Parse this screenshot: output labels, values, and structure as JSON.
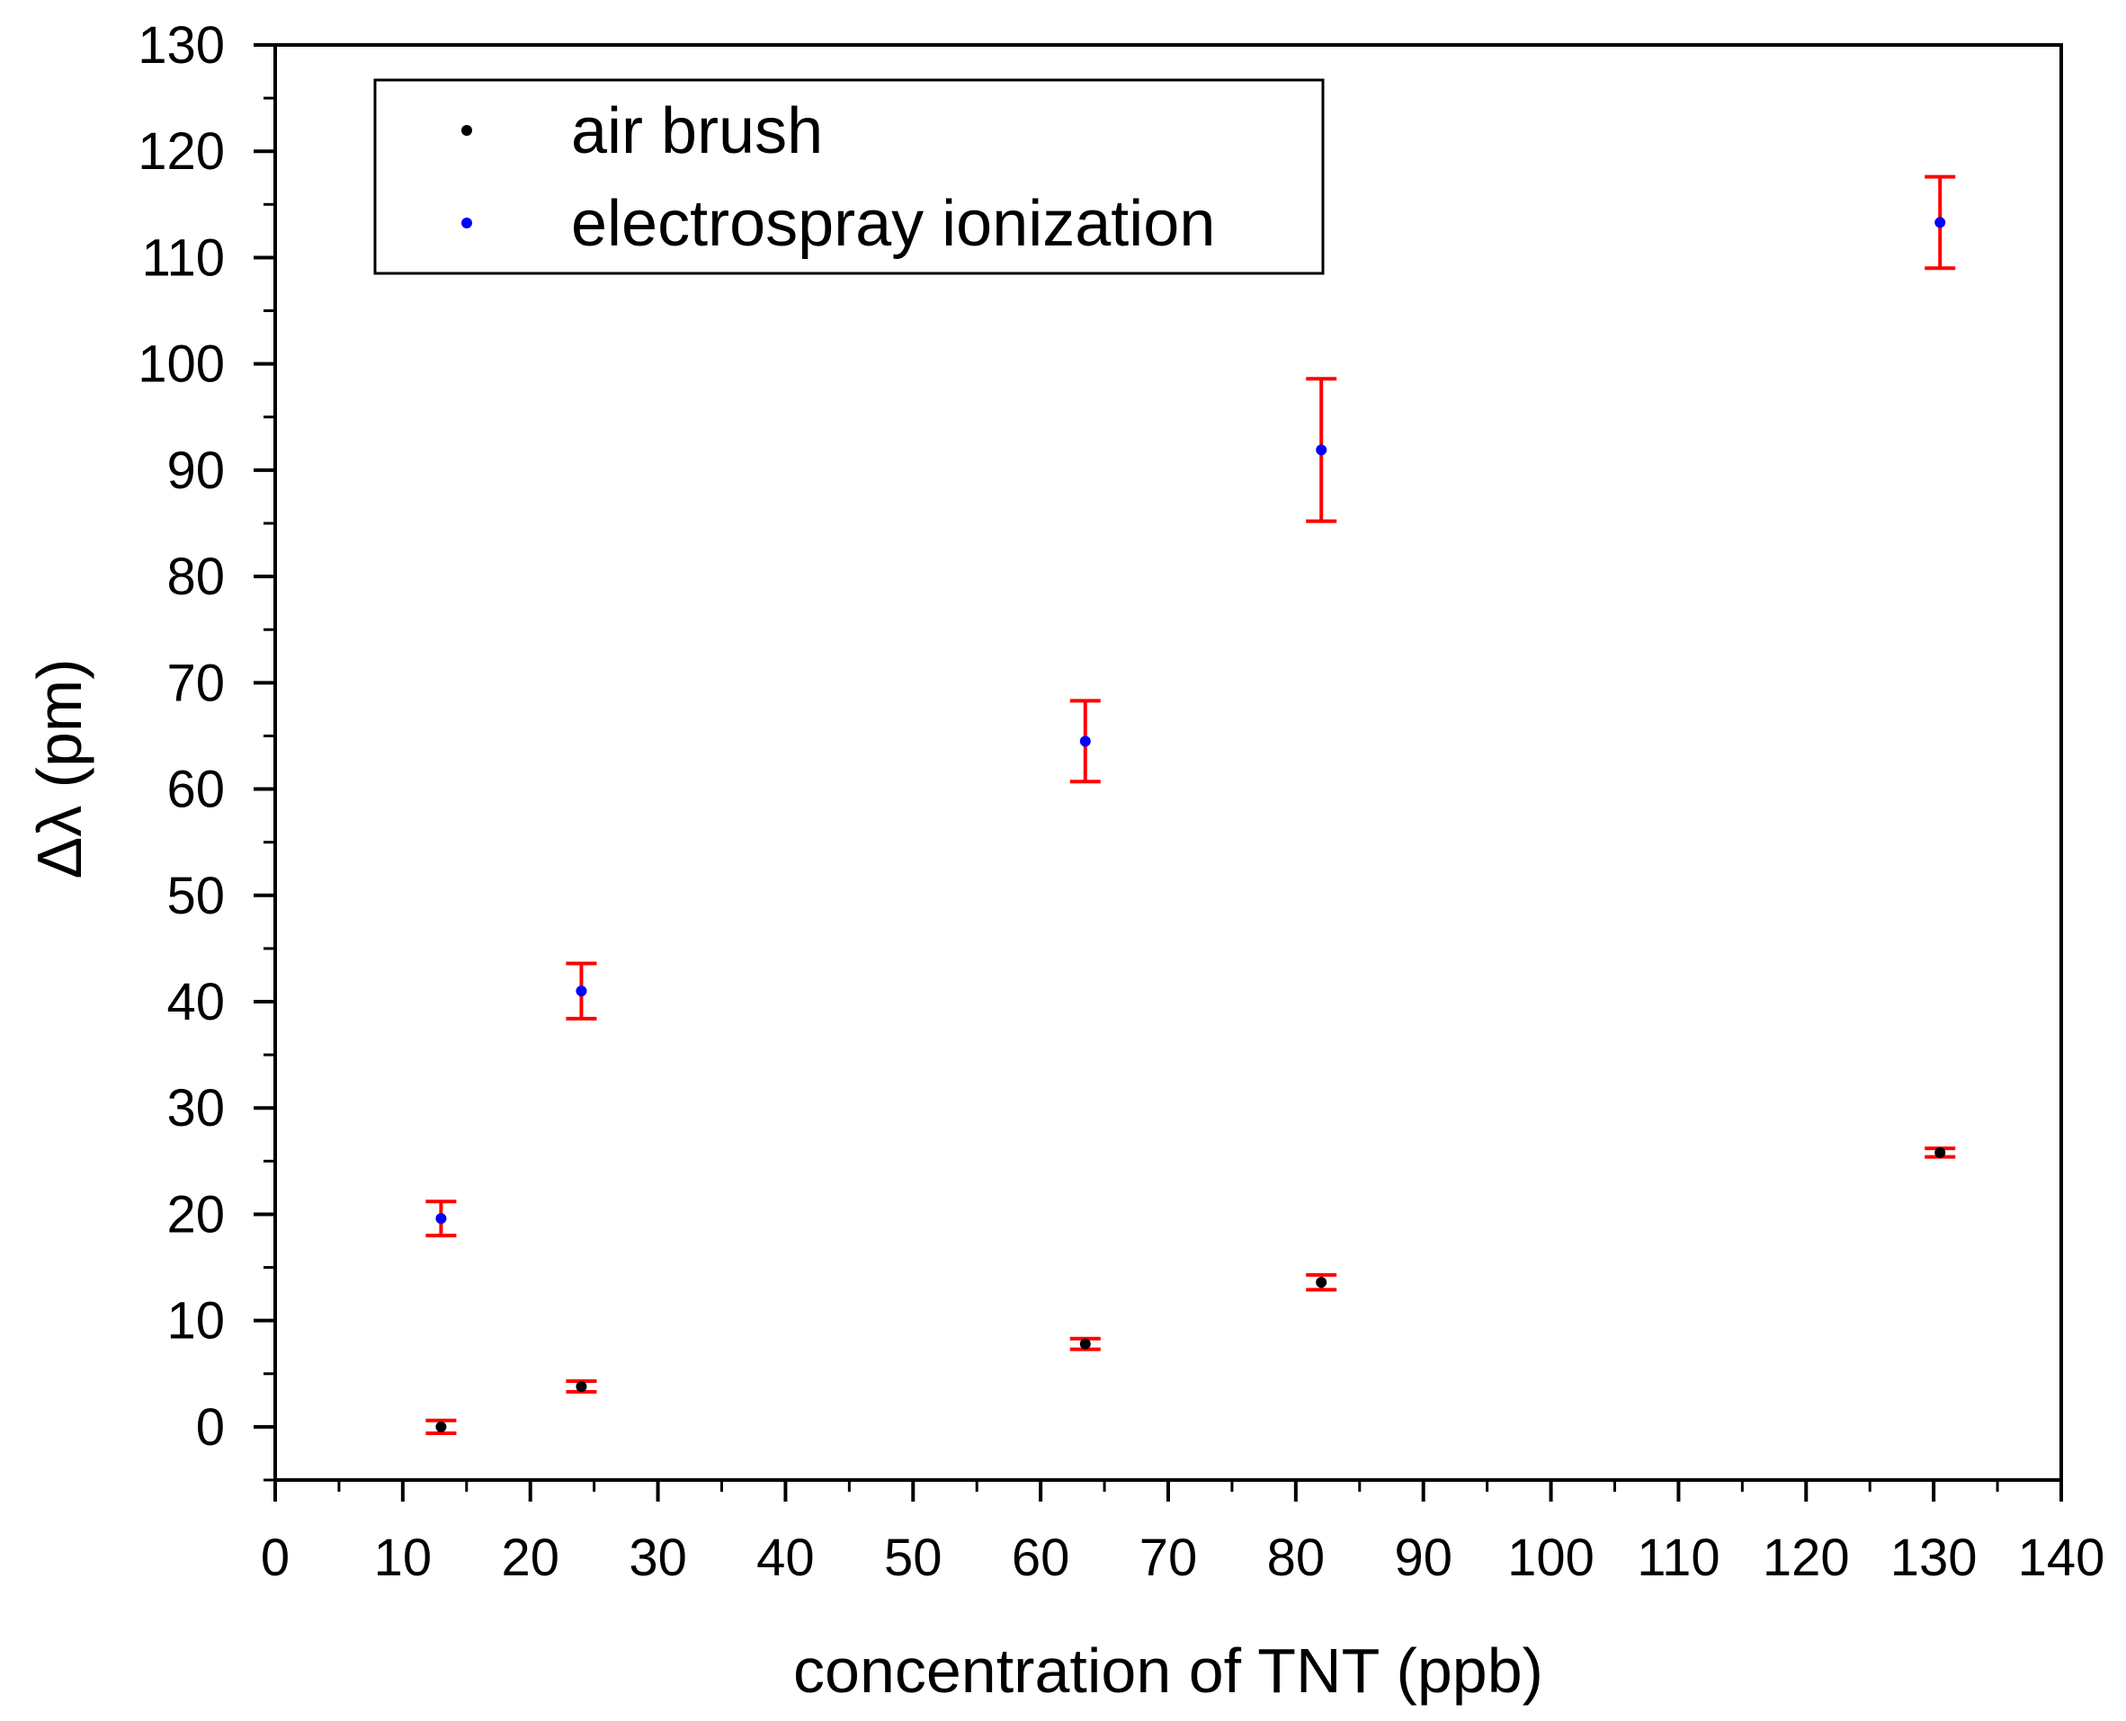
{
  "chart_data": {
    "type": "scatter",
    "title": "",
    "xlabel": "concentration of TNT (ppb)",
    "ylabel": "Δλ (pm)",
    "xlim": [
      0,
      140
    ],
    "ylim": [
      -5,
      130
    ],
    "x_ticks": [
      0,
      10,
      20,
      30,
      40,
      50,
      60,
      70,
      80,
      90,
      100,
      110,
      120,
      130,
      140
    ],
    "y_ticks": [
      0,
      10,
      20,
      30,
      40,
      50,
      60,
      70,
      80,
      90,
      100,
      110,
      120,
      130
    ],
    "x_tick_labels": [
      "0",
      "10",
      "20",
      "30",
      "40",
      "50",
      "60",
      "70",
      "80",
      "90",
      "100",
      "110",
      "120",
      "130",
      "140"
    ],
    "y_tick_labels": [
      "0",
      "10",
      "20",
      "30",
      "40",
      "50",
      "60",
      "70",
      "80",
      "90",
      "100",
      "110",
      "120",
      "130"
    ],
    "grid": false,
    "legend_position": "top-left",
    "error_bar_color": "#ff0000",
    "series": [
      {
        "name": "air brush",
        "color": "#000000",
        "points": [
          {
            "x": 13,
            "y": 0.0,
            "err": 0.6
          },
          {
            "x": 24,
            "y": 3.8,
            "err": 0.5
          },
          {
            "x": 63.5,
            "y": 7.8,
            "err": 0.5
          },
          {
            "x": 82,
            "y": 13.6,
            "err": 0.7
          },
          {
            "x": 130.5,
            "y": 25.8,
            "err": 0.4
          }
        ]
      },
      {
        "name": "electrospray ionization",
        "color": "#0000ff",
        "points": [
          {
            "x": 13,
            "y": 19.6,
            "err": 1.6
          },
          {
            "x": 24,
            "y": 41.0,
            "err": 2.6
          },
          {
            "x": 63.5,
            "y": 64.5,
            "err": 3.8
          },
          {
            "x": 82,
            "y": 91.9,
            "err": 6.7
          },
          {
            "x": 130.5,
            "y": 113.3,
            "err": 4.3
          }
        ]
      }
    ]
  }
}
